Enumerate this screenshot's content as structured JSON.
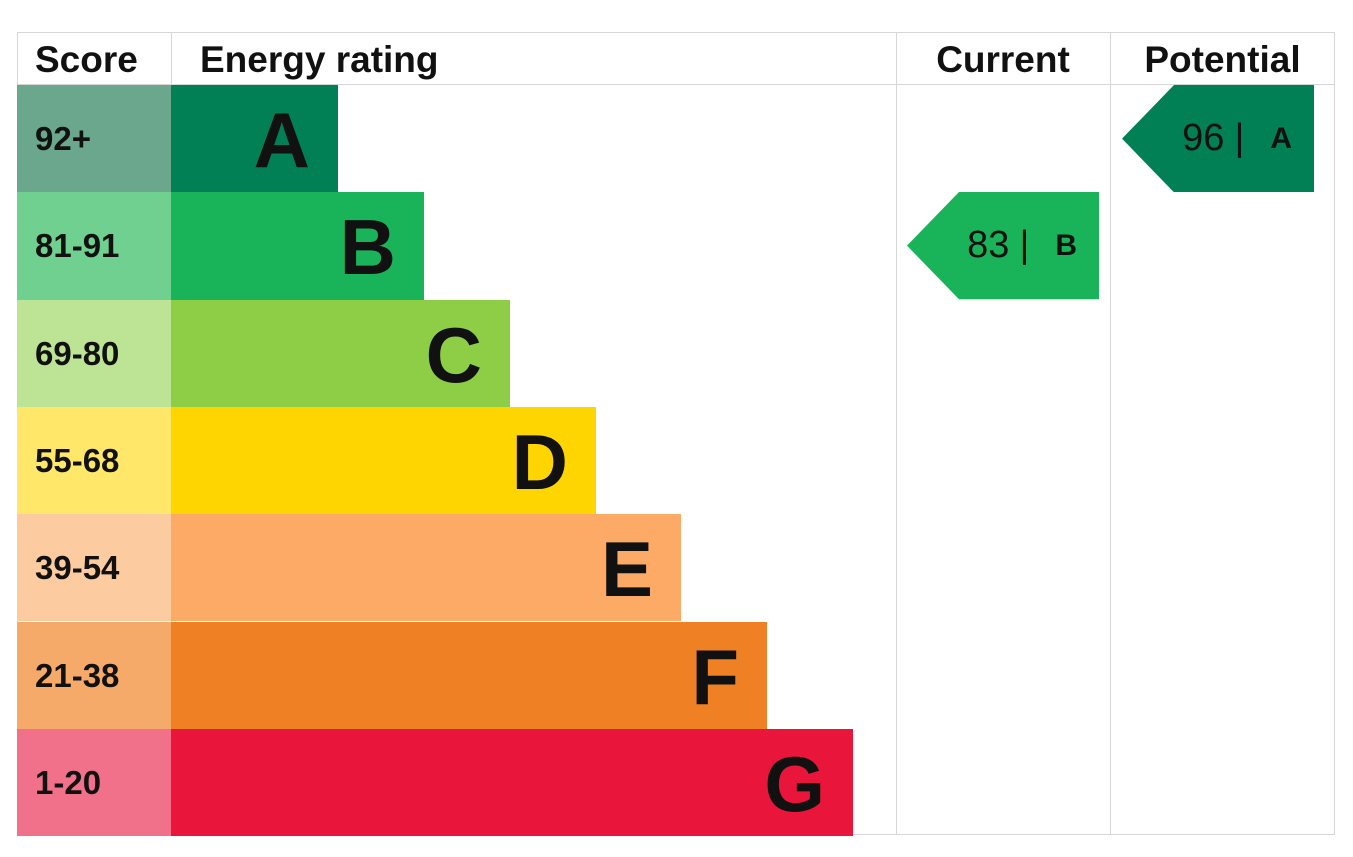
{
  "header": {
    "score": "Score",
    "energy_rating": "Energy rating",
    "current": "Current",
    "potential": "Potential"
  },
  "chart_data": {
    "type": "bar",
    "categories": [
      "A",
      "B",
      "C",
      "D",
      "E",
      "F",
      "G"
    ],
    "bands": [
      {
        "letter": "A",
        "score": "92+",
        "color": "#008054",
        "score_color": "#6aa78d"
      },
      {
        "letter": "B",
        "score": "81-91",
        "color": "#19b459",
        "score_color": "#6fd08f"
      },
      {
        "letter": "C",
        "score": "69-80",
        "color": "#8dce46",
        "score_color": "#bde495"
      },
      {
        "letter": "D",
        "score": "55-68",
        "color": "#ffd500",
        "score_color": "#ffe76a"
      },
      {
        "letter": "E",
        "score": "39-54",
        "color": "#fcaa65",
        "score_color": "#fdcba0"
      },
      {
        "letter": "F",
        "score": "21-38",
        "color": "#ef8023",
        "score_color": "#f5aa6a"
      },
      {
        "letter": "G",
        "score": "1-20",
        "color": "#e9153b",
        "score_color": "#f07189"
      }
    ],
    "current": {
      "value": 83,
      "rating": "B",
      "separator": "|",
      "color": "#19b459"
    },
    "potential": {
      "value": 96,
      "rating": "A",
      "separator": "|",
      "color": "#008054"
    }
  }
}
